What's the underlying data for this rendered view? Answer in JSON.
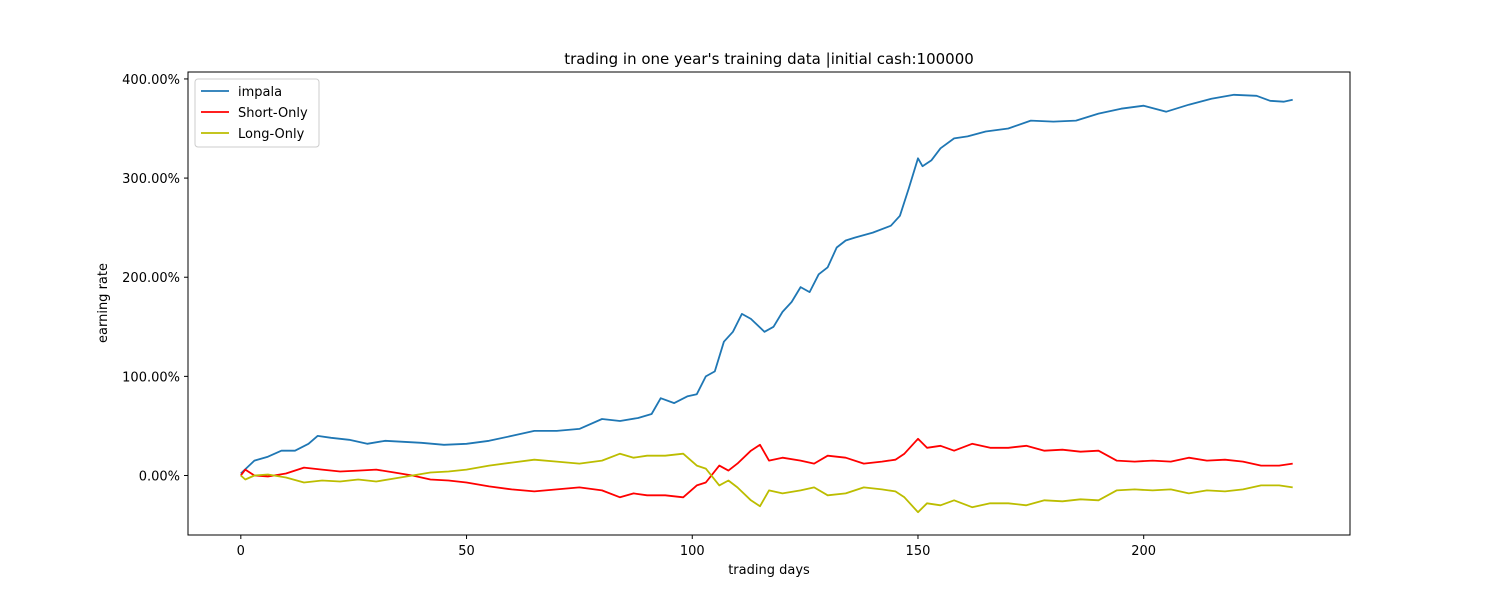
{
  "chart_data": {
    "type": "line",
    "title": "trading in one year's training data |initial cash:100000",
    "xlabel": "trading days",
    "ylabel": "earning rate",
    "xlim": [
      -11.7,
      245.7
    ],
    "ylim": [
      -0.6,
      4.07
    ],
    "xticks": [
      0,
      50,
      100,
      150,
      200
    ],
    "xtick_labels": [
      "0",
      "50",
      "100",
      "150",
      "200"
    ],
    "yticks": [
      0,
      1,
      2,
      3,
      4
    ],
    "ytick_labels": [
      "0.00%",
      "100.00%",
      "200.00%",
      "300.00%",
      "400.00%"
    ],
    "grid": false,
    "legend_position": "top-left",
    "series": [
      {
        "name": "impala",
        "color": "#1f77b4",
        "points": [
          [
            0,
            0.02
          ],
          [
            3,
            0.15
          ],
          [
            6,
            0.19
          ],
          [
            9,
            0.25
          ],
          [
            12,
            0.25
          ],
          [
            15,
            0.32
          ],
          [
            17,
            0.4
          ],
          [
            20,
            0.38
          ],
          [
            24,
            0.36
          ],
          [
            28,
            0.32
          ],
          [
            32,
            0.35
          ],
          [
            36,
            0.34
          ],
          [
            40,
            0.33
          ],
          [
            45,
            0.31
          ],
          [
            50,
            0.32
          ],
          [
            55,
            0.35
          ],
          [
            60,
            0.4
          ],
          [
            65,
            0.45
          ],
          [
            70,
            0.45
          ],
          [
            75,
            0.47
          ],
          [
            80,
            0.57
          ],
          [
            84,
            0.55
          ],
          [
            88,
            0.58
          ],
          [
            91,
            0.62
          ],
          [
            93,
            0.78
          ],
          [
            96,
            0.73
          ],
          [
            99,
            0.8
          ],
          [
            101,
            0.82
          ],
          [
            103,
            1.0
          ],
          [
            105,
            1.05
          ],
          [
            107,
            1.35
          ],
          [
            109,
            1.45
          ],
          [
            111,
            1.63
          ],
          [
            113,
            1.58
          ],
          [
            116,
            1.45
          ],
          [
            118,
            1.5
          ],
          [
            120,
            1.65
          ],
          [
            122,
            1.75
          ],
          [
            124,
            1.9
          ],
          [
            126,
            1.85
          ],
          [
            128,
            2.03
          ],
          [
            130,
            2.1
          ],
          [
            132,
            2.3
          ],
          [
            134,
            2.37
          ],
          [
            136,
            2.4
          ],
          [
            140,
            2.45
          ],
          [
            144,
            2.52
          ],
          [
            146,
            2.62
          ],
          [
            148,
            2.9
          ],
          [
            150,
            3.2
          ],
          [
            151,
            3.12
          ],
          [
            153,
            3.18
          ],
          [
            155,
            3.3
          ],
          [
            158,
            3.4
          ],
          [
            161,
            3.42
          ],
          [
            165,
            3.47
          ],
          [
            170,
            3.5
          ],
          [
            175,
            3.58
          ],
          [
            180,
            3.57
          ],
          [
            185,
            3.58
          ],
          [
            190,
            3.65
          ],
          [
            195,
            3.7
          ],
          [
            200,
            3.73
          ],
          [
            205,
            3.67
          ],
          [
            210,
            3.74
          ],
          [
            215,
            3.8
          ],
          [
            220,
            3.84
          ],
          [
            225,
            3.83
          ],
          [
            228,
            3.78
          ],
          [
            231,
            3.77
          ],
          [
            233,
            3.79
          ]
        ]
      },
      {
        "name": "Short-Only",
        "color": "#ff0000",
        "points": [
          [
            0,
            0.0
          ],
          [
            1,
            0.06
          ],
          [
            3,
            0.0
          ],
          [
            6,
            -0.01
          ],
          [
            10,
            0.02
          ],
          [
            14,
            0.08
          ],
          [
            18,
            0.06
          ],
          [
            22,
            0.04
          ],
          [
            26,
            0.05
          ],
          [
            30,
            0.06
          ],
          [
            34,
            0.03
          ],
          [
            38,
            0.0
          ],
          [
            42,
            -0.04
          ],
          [
            46,
            -0.05
          ],
          [
            50,
            -0.07
          ],
          [
            55,
            -0.11
          ],
          [
            60,
            -0.14
          ],
          [
            65,
            -0.16
          ],
          [
            70,
            -0.14
          ],
          [
            75,
            -0.12
          ],
          [
            80,
            -0.15
          ],
          [
            84,
            -0.22
          ],
          [
            87,
            -0.18
          ],
          [
            90,
            -0.2
          ],
          [
            94,
            -0.2
          ],
          [
            98,
            -0.22
          ],
          [
            101,
            -0.1
          ],
          [
            103,
            -0.07
          ],
          [
            106,
            0.1
          ],
          [
            108,
            0.05
          ],
          [
            110,
            0.12
          ],
          [
            113,
            0.25
          ],
          [
            115,
            0.31
          ],
          [
            117,
            0.15
          ],
          [
            120,
            0.18
          ],
          [
            124,
            0.15
          ],
          [
            127,
            0.12
          ],
          [
            130,
            0.2
          ],
          [
            134,
            0.18
          ],
          [
            138,
            0.12
          ],
          [
            142,
            0.14
          ],
          [
            145,
            0.16
          ],
          [
            147,
            0.22
          ],
          [
            150,
            0.37
          ],
          [
            152,
            0.28
          ],
          [
            155,
            0.3
          ],
          [
            158,
            0.25
          ],
          [
            162,
            0.32
          ],
          [
            166,
            0.28
          ],
          [
            170,
            0.28
          ],
          [
            174,
            0.3
          ],
          [
            178,
            0.25
          ],
          [
            182,
            0.26
          ],
          [
            186,
            0.24
          ],
          [
            190,
            0.25
          ],
          [
            194,
            0.15
          ],
          [
            198,
            0.14
          ],
          [
            202,
            0.15
          ],
          [
            206,
            0.14
          ],
          [
            210,
            0.18
          ],
          [
            214,
            0.15
          ],
          [
            218,
            0.16
          ],
          [
            222,
            0.14
          ],
          [
            226,
            0.1
          ],
          [
            230,
            0.1
          ],
          [
            233,
            0.12
          ]
        ]
      },
      {
        "name": "Long-Only",
        "color": "#bcbd00",
        "points": [
          [
            0,
            0.0
          ],
          [
            1,
            -0.04
          ],
          [
            3,
            0.0
          ],
          [
            6,
            0.01
          ],
          [
            10,
            -0.02
          ],
          [
            14,
            -0.07
          ],
          [
            18,
            -0.05
          ],
          [
            22,
            -0.06
          ],
          [
            26,
            -0.04
          ],
          [
            30,
            -0.06
          ],
          [
            34,
            -0.03
          ],
          [
            38,
            0.0
          ],
          [
            42,
            0.03
          ],
          [
            46,
            0.04
          ],
          [
            50,
            0.06
          ],
          [
            55,
            0.1
          ],
          [
            60,
            0.13
          ],
          [
            65,
            0.16
          ],
          [
            70,
            0.14
          ],
          [
            75,
            0.12
          ],
          [
            80,
            0.15
          ],
          [
            84,
            0.22
          ],
          [
            87,
            0.18
          ],
          [
            90,
            0.2
          ],
          [
            94,
            0.2
          ],
          [
            98,
            0.22
          ],
          [
            101,
            0.1
          ],
          [
            103,
            0.07
          ],
          [
            106,
            -0.1
          ],
          [
            108,
            -0.05
          ],
          [
            110,
            -0.12
          ],
          [
            113,
            -0.25
          ],
          [
            115,
            -0.31
          ],
          [
            117,
            -0.15
          ],
          [
            120,
            -0.18
          ],
          [
            124,
            -0.15
          ],
          [
            127,
            -0.12
          ],
          [
            130,
            -0.2
          ],
          [
            134,
            -0.18
          ],
          [
            138,
            -0.12
          ],
          [
            142,
            -0.14
          ],
          [
            145,
            -0.16
          ],
          [
            147,
            -0.22
          ],
          [
            150,
            -0.37
          ],
          [
            152,
            -0.28
          ],
          [
            155,
            -0.3
          ],
          [
            158,
            -0.25
          ],
          [
            162,
            -0.32
          ],
          [
            166,
            -0.28
          ],
          [
            170,
            -0.28
          ],
          [
            174,
            -0.3
          ],
          [
            178,
            -0.25
          ],
          [
            182,
            -0.26
          ],
          [
            186,
            -0.24
          ],
          [
            190,
            -0.25
          ],
          [
            194,
            -0.15
          ],
          [
            198,
            -0.14
          ],
          [
            202,
            -0.15
          ],
          [
            206,
            -0.14
          ],
          [
            210,
            -0.18
          ],
          [
            214,
            -0.15
          ],
          [
            218,
            -0.16
          ],
          [
            222,
            -0.14
          ],
          [
            226,
            -0.1
          ],
          [
            230,
            -0.1
          ],
          [
            233,
            -0.12
          ]
        ]
      }
    ]
  }
}
